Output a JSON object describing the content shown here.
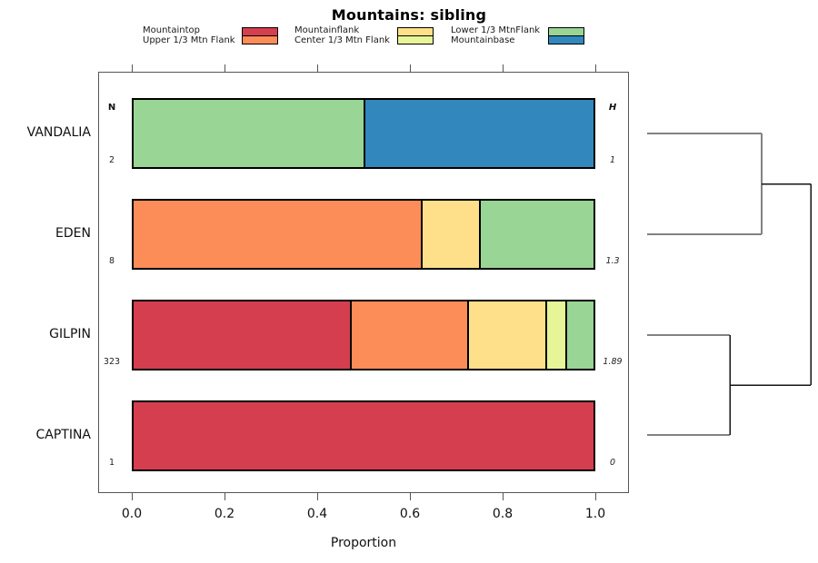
{
  "title": "Mountains: sibling",
  "legend": {
    "groups": [
      {
        "labels": [
          "Mountaintop",
          "Upper 1/3 Mtn Flank"
        ],
        "colors": [
          "#D53E4F",
          "#FC8D59"
        ]
      },
      {
        "labels": [
          "Mountainflank",
          "Center 1/3 Mtn Flank"
        ],
        "colors": [
          "#FEE08B",
          "#E6F598"
        ]
      },
      {
        "labels": [
          "Lower 1/3 MtnFlank",
          "Mountainbase"
        ],
        "colors": [
          "#99D594",
          "#3288BD"
        ]
      }
    ]
  },
  "chart_data": {
    "type": "bar",
    "subtype": "horizontal-stacked-proportion-with-dendrogram",
    "title": "Mountains: sibling",
    "xlabel": "Proportion",
    "xlim": [
      0,
      1
    ],
    "grid": false,
    "x_ticks": [
      {
        "value": 0.0,
        "label": "0.0"
      },
      {
        "value": 0.2,
        "label": "0.2"
      },
      {
        "value": 0.4,
        "label": "0.4"
      },
      {
        "value": 0.6,
        "label": "0.6"
      },
      {
        "value": 0.8,
        "label": "0.8"
      },
      {
        "value": 1.0,
        "label": "1.0"
      }
    ],
    "columns": {
      "n_header": "N",
      "h_header": "H"
    },
    "categories": [
      "VANDALIA",
      "EDEN",
      "GILPIN",
      "CAPTINA"
    ],
    "classes": [
      "Mountaintop",
      "Upper 1/3 Mtn Flank",
      "Mountainflank",
      "Center 1/3 Mtn Flank",
      "Lower 1/3 MtnFlank",
      "Mountainbase"
    ],
    "class_colors": {
      "Mountaintop": "#D53E4F",
      "Upper 1/3 Mtn Flank": "#FC8D59",
      "Mountainflank": "#FEE08B",
      "Center 1/3 Mtn Flank": "#E6F598",
      "Lower 1/3 MtnFlank": "#99D594",
      "Mountainbase": "#3288BD"
    },
    "rows": [
      {
        "label": "VANDALIA",
        "n": "2",
        "h": "1",
        "segments": [
          {
            "class": "Lower 1/3 MtnFlank",
            "color": "#99D594",
            "value": 0.5
          },
          {
            "class": "Mountainbase",
            "color": "#3288BD",
            "value": 0.5
          }
        ]
      },
      {
        "label": "EDEN",
        "n": "8",
        "h": "1.3",
        "segments": [
          {
            "class": "Upper 1/3 Mtn Flank",
            "color": "#FC8D59",
            "value": 0.625
          },
          {
            "class": "Mountainflank",
            "color": "#FEE08B",
            "value": 0.125
          },
          {
            "class": "Lower 1/3 MtnFlank",
            "color": "#99D594",
            "value": 0.25
          }
        ]
      },
      {
        "label": "GILPIN",
        "n": "323",
        "h": "1.89",
        "segments": [
          {
            "class": "Mountaintop",
            "color": "#D53E4F",
            "value": 0.4706
          },
          {
            "class": "Upper 1/3 Mtn Flank",
            "color": "#FC8D59",
            "value": 0.2539
          },
          {
            "class": "Mountainflank",
            "color": "#FEE08B",
            "value": 0.1703
          },
          {
            "class": "Center 1/3 Mtn Flank",
            "color": "#E6F598",
            "value": 0.0433
          },
          {
            "class": "Lower 1/3 MtnFlank",
            "color": "#99D594",
            "value": 0.0619
          }
        ]
      },
      {
        "label": "CAPTINA",
        "n": "1",
        "h": "0",
        "segments": [
          {
            "class": "Mountaintop",
            "color": "#D53E4F",
            "value": 1.0
          }
        ]
      }
    ],
    "dendrogram": {
      "position": "right",
      "leaves": [
        "VANDALIA",
        "EDEN",
        "GILPIN",
        "CAPTINA"
      ],
      "merges": [
        {
          "members": [
            "VANDALIA",
            "EDEN"
          ]
        },
        {
          "members": [
            "GILPIN",
            "CAPTINA"
          ]
        },
        {
          "members": [
            "VANDALIA+EDEN",
            "GILPIN+CAPTINA"
          ]
        }
      ]
    }
  }
}
